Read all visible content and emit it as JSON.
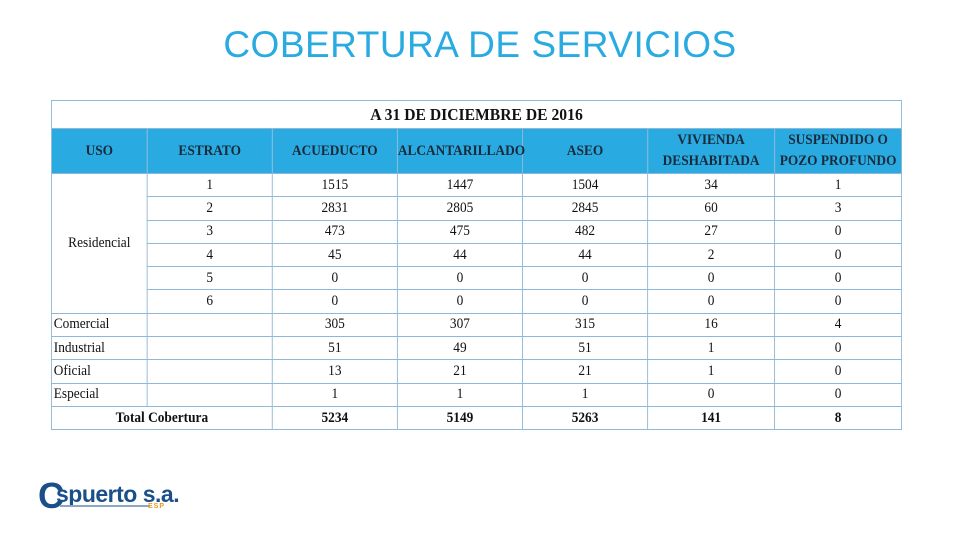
{
  "title": "COBERTURA DE SERVICIOS",
  "table": {
    "caption": "A 31 DE DICIEMBRE DE 2016",
    "headers": {
      "uso": "USO",
      "estrato": "ESTRATO",
      "acueducto": "ACUEDUCTO",
      "alcantarillado": "ALCANTARILLADO",
      "aseo": "ASEO",
      "vivienda": "VIVIENDA DESHABITADA",
      "suspendido": "SUSPENDIDO O POZO PROFUNDO"
    },
    "residencial_label": "Residencial",
    "residencial": [
      {
        "estrato": "1",
        "acueducto": "1515",
        "alcantarillado": "1447",
        "aseo": "1504",
        "vivienda": "34",
        "suspendido": "1"
      },
      {
        "estrato": "2",
        "acueducto": "2831",
        "alcantarillado": "2805",
        "aseo": "2845",
        "vivienda": "60",
        "suspendido": "3"
      },
      {
        "estrato": "3",
        "acueducto": "473",
        "alcantarillado": "475",
        "aseo": "482",
        "vivienda": "27",
        "suspendido": "0"
      },
      {
        "estrato": "4",
        "acueducto": "45",
        "alcantarillado": "44",
        "aseo": "44",
        "vivienda": "2",
        "suspendido": "0"
      },
      {
        "estrato": "5",
        "acueducto": "0",
        "alcantarillado": "0",
        "aseo": "0",
        "vivienda": "0",
        "suspendido": "0"
      },
      {
        "estrato": "6",
        "acueducto": "0",
        "alcantarillado": "0",
        "aseo": "0",
        "vivienda": "0",
        "suspendido": "0"
      }
    ],
    "others": [
      {
        "uso": "Comercial",
        "acueducto": "305",
        "alcantarillado": "307",
        "aseo": "315",
        "vivienda": "16",
        "suspendido": "4"
      },
      {
        "uso": "Industrial",
        "acueducto": "51",
        "alcantarillado": "49",
        "aseo": "51",
        "vivienda": "1",
        "suspendido": "0"
      },
      {
        "uso": "Oficial",
        "acueducto": "13",
        "alcantarillado": "21",
        "aseo": "21",
        "vivienda": "1",
        "suspendido": "0"
      },
      {
        "uso": "Especial",
        "acueducto": "1",
        "alcantarillado": "1",
        "aseo": "1",
        "vivienda": "0",
        "suspendido": "0"
      }
    ],
    "total": {
      "label": "Total Cobertura",
      "acueducto": "5234",
      "alcantarillado": "5149",
      "aseo": "5263",
      "vivienda": "141",
      "suspendido": "8"
    }
  },
  "logo": {
    "c": "C",
    "name": "spuerto s.a.",
    "esp": "ESP"
  },
  "colors": {
    "title": "#29abe2",
    "header_bg": "#29abe2",
    "logo": "#1b4f8a"
  }
}
